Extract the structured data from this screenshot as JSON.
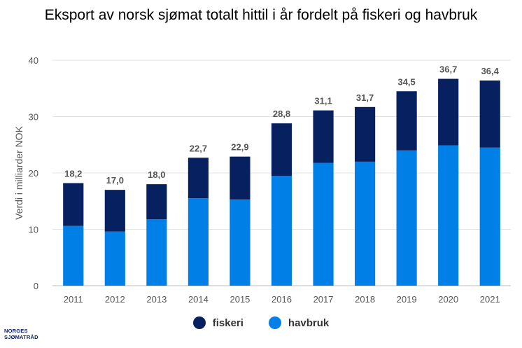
{
  "chart_data": {
    "type": "bar",
    "stacked": true,
    "title": "Eksport av norsk sjømat totalt hittil i år fordelt på fiskeri og havbruk",
    "ylabel": "Verdi i milliarder NOK",
    "xlabel": "",
    "ylim": [
      0,
      40
    ],
    "yticks": [
      0,
      10,
      20,
      30,
      40
    ],
    "grid": true,
    "legend_position": "bottom",
    "categories": [
      "2011",
      "2012",
      "2013",
      "2014",
      "2015",
      "2016",
      "2017",
      "2018",
      "2019",
      "2020",
      "2021"
    ],
    "series": [
      {
        "name": "havbruk",
        "color": "#0080e6",
        "values": [
          10.6,
          9.6,
          11.8,
          15.5,
          15.3,
          19.5,
          21.8,
          22.0,
          24.0,
          24.9,
          24.5
        ]
      },
      {
        "name": "fiskeri",
        "color": "#07205f",
        "values": [
          7.6,
          7.4,
          6.2,
          7.2,
          7.6,
          9.3,
          9.3,
          9.7,
          10.5,
          11.8,
          11.9
        ]
      }
    ],
    "totals": [
      "18,2",
      "17,0",
      "18,0",
      "22,7",
      "22,9",
      "28,8",
      "31,1",
      "31,7",
      "34,5",
      "36,7",
      "36,4"
    ]
  },
  "logo": {
    "line1": "NORGES",
    "line2": "SJØMATRÅD"
  }
}
